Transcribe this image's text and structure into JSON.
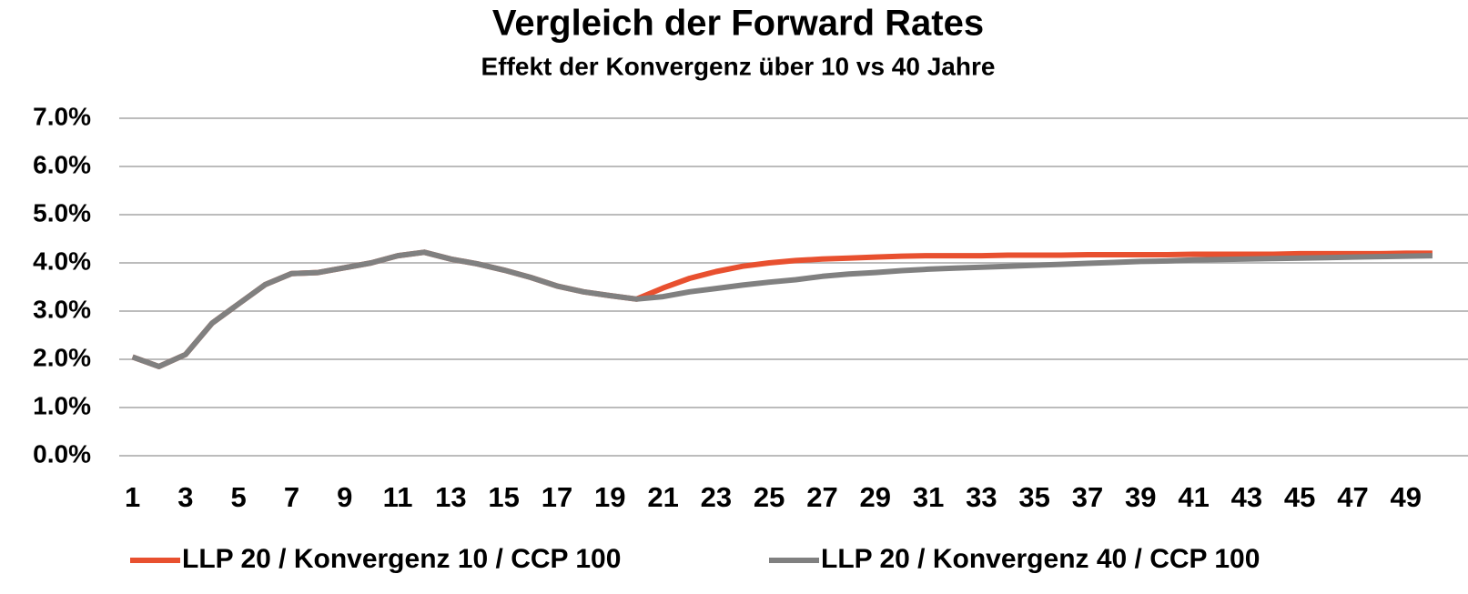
{
  "chart_data": {
    "type": "line",
    "title": "Vergleich der Forward Rates",
    "subtitle": "Effekt der Konvergenz über 10 vs 40 Jahre",
    "categories": [
      "1",
      null,
      "3",
      null,
      "5",
      null,
      "7",
      null,
      "9",
      null,
      "11",
      null,
      "13",
      null,
      "15",
      null,
      "17",
      null,
      "19",
      null,
      "21",
      null,
      "23",
      null,
      "25",
      null,
      "27",
      null,
      "29",
      null,
      "31",
      null,
      "33",
      null,
      "35",
      null,
      "37",
      null,
      "39",
      null,
      "41",
      null,
      "43",
      null,
      "45",
      null,
      "47",
      null,
      "49",
      null
    ],
    "series": [
      {
        "name": "LLP 20 / Konvergenz 10 / CCP 100",
        "color": "#e8502f",
        "values": [
          2.05,
          1.85,
          2.1,
          2.75,
          3.15,
          3.55,
          3.78,
          3.8,
          3.9,
          4.0,
          4.15,
          4.22,
          4.08,
          3.98,
          3.85,
          3.7,
          3.52,
          3.4,
          3.32,
          3.25,
          3.48,
          3.68,
          3.82,
          3.93,
          4.0,
          4.05,
          4.08,
          4.1,
          4.12,
          4.14,
          4.15,
          4.15,
          4.15,
          4.16,
          4.16,
          4.16,
          4.17,
          4.17,
          4.17,
          4.17,
          4.18,
          4.18,
          4.18,
          4.18,
          4.19,
          4.19,
          4.19,
          4.19,
          4.2,
          4.2
        ]
      },
      {
        "name": "LLP 20 / Konvergenz 40 / CCP 100",
        "color": "#808080",
        "values": [
          2.05,
          1.85,
          2.1,
          2.75,
          3.15,
          3.55,
          3.78,
          3.8,
          3.9,
          4.0,
          4.15,
          4.22,
          4.08,
          3.98,
          3.85,
          3.7,
          3.52,
          3.4,
          3.32,
          3.25,
          3.3,
          3.4,
          3.47,
          3.54,
          3.6,
          3.65,
          3.72,
          3.77,
          3.8,
          3.84,
          3.87,
          3.89,
          3.91,
          3.93,
          3.95,
          3.97,
          3.99,
          4.01,
          4.03,
          4.04,
          4.06,
          4.07,
          4.08,
          4.09,
          4.1,
          4.11,
          4.12,
          4.13,
          4.14,
          4.15
        ]
      }
    ],
    "ylim": [
      0,
      7
    ],
    "yticks": [
      {
        "value": 0,
        "label": "0.0%"
      },
      {
        "value": 1,
        "label": "1.0%"
      },
      {
        "value": 2,
        "label": "2.0%"
      },
      {
        "value": 3,
        "label": "3.0%"
      },
      {
        "value": 4,
        "label": "4.0%"
      },
      {
        "value": 5,
        "label": "5.0%"
      },
      {
        "value": 6,
        "label": "6.0%"
      },
      {
        "value": 7,
        "label": "7.0%"
      }
    ],
    "grid": true,
    "legend": "bottom"
  }
}
